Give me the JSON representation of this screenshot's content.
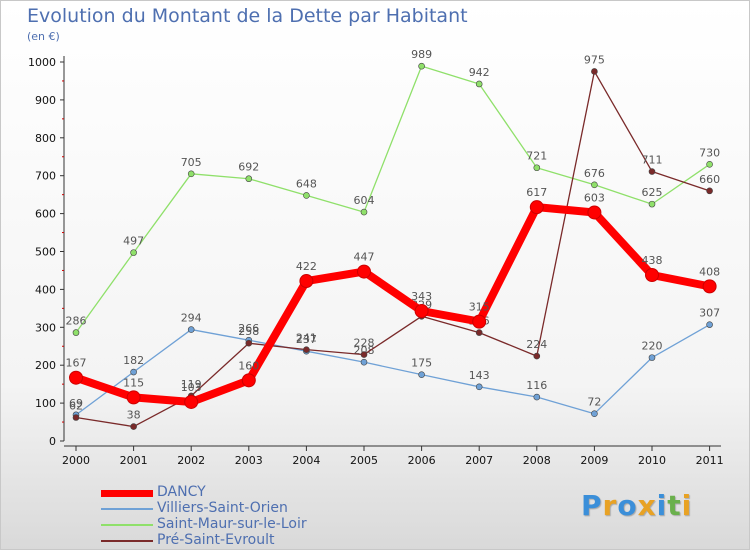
{
  "chart_data": {
    "type": "line",
    "title": "Evolution du Montant de la Dette par Habitant",
    "unit": "(en €)",
    "x": [
      "2000",
      "2001",
      "2002",
      "2003",
      "2004",
      "2005",
      "2006",
      "2007",
      "2008",
      "2009",
      "2010",
      "2011"
    ],
    "yticks": [
      "0",
      "100",
      "200",
      "300",
      "400",
      "500",
      "600",
      "700",
      "800",
      "900",
      "1000"
    ],
    "ylim": [
      0,
      1000
    ],
    "grid": false,
    "legend_position": "bottom-left",
    "series": [
      {
        "name": "Saint-Maur-sur-le-Loir",
        "color": "#8fe06a",
        "values": [
          286,
          497,
          705,
          692,
          648,
          604,
          989,
          942,
          721,
          676,
          625,
          730
        ]
      },
      {
        "name": "Villiers-Saint-Orien",
        "color": "#6fa1d6",
        "values": [
          69,
          182,
          294,
          266,
          237,
          208,
          175,
          143,
          116,
          72,
          220,
          307
        ]
      },
      {
        "name": "Pré-Saint-Evroult",
        "color": "#7a2a2a",
        "values": [
          62,
          38,
          119,
          258,
          241,
          228,
          329,
          286,
          224,
          975,
          711,
          660
        ]
      },
      {
        "name": "DANCY",
        "color": "#ff0000",
        "values": [
          167,
          115,
          103,
          160,
          422,
          447,
          343,
          315,
          617,
          603,
          438,
          408
        ]
      }
    ],
    "legend": [
      {
        "name": "DANCY",
        "color": "#ff0000"
      },
      {
        "name": "Villiers-Saint-Orien",
        "color": "#6fa1d6"
      },
      {
        "name": "Saint-Maur-sur-le-Loir",
        "color": "#8fe06a"
      },
      {
        "name": "Pré-Saint-Evroult",
        "color": "#7a2a2a"
      }
    ]
  },
  "logo": {
    "letters": [
      "P",
      "r",
      "o",
      "x",
      "i",
      "t",
      "i"
    ],
    "colors": [
      "#3b8fd9",
      "#e8a224",
      "#3b8fd9",
      "#e8a224",
      "#3b8fd9",
      "#6ab04c",
      "#e8a224"
    ]
  }
}
